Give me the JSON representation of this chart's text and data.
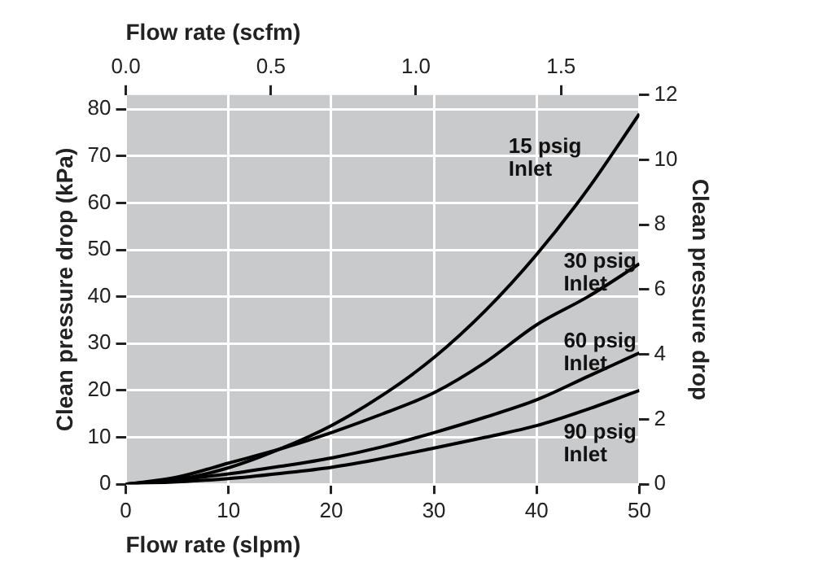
{
  "chart_data": {
    "type": "line",
    "xlabel": "Flow rate (slpm)",
    "x2label": "Flow rate (scfm)",
    "ylabel": "Clean pressure drop (kPa)",
    "y2label": "Clean pressure drop",
    "x": [
      0,
      5,
      10,
      15,
      20,
      25,
      30,
      35,
      40,
      45,
      50
    ],
    "xlim": [
      0,
      50
    ],
    "xticks": [
      0,
      10,
      20,
      30,
      40,
      50
    ],
    "x2lim": [
      0,
      1.77
    ],
    "x2ticks": [
      {
        "value": 0,
        "label": "0.0"
      },
      {
        "value": 0.5,
        "label": "0.5"
      },
      {
        "value": 1,
        "label": "1.0"
      },
      {
        "value": 1.5,
        "label": "1.5"
      }
    ],
    "ylim": [
      0,
      83
    ],
    "yticks": [
      0,
      10,
      20,
      30,
      40,
      50,
      60,
      70,
      80
    ],
    "y2lim": [
      0,
      12
    ],
    "y2ticks": [
      0,
      2,
      4,
      6,
      8,
      10,
      12
    ],
    "series": [
      {
        "name": "15 psig Inlet",
        "color": "#000000",
        "values": [
          0,
          1,
          3.5,
          7.5,
          12.5,
          19,
          27,
          37,
          49,
          63,
          79
        ]
      },
      {
        "name": "30 psig Inlet",
        "color": "#000000",
        "values": [
          0,
          1.5,
          4.5,
          7.5,
          11,
          15,
          19.5,
          26,
          34,
          40,
          47
        ]
      },
      {
        "name": "60 psig Inlet",
        "color": "#000000",
        "values": [
          0,
          1,
          2.2,
          3.8,
          5.6,
          8,
          11,
          14.3,
          18,
          23,
          28
        ]
      },
      {
        "name": "90 psig Inlet",
        "color": "#000000",
        "values": [
          0,
          0.5,
          1.2,
          2.3,
          3.6,
          5.5,
          7.7,
          10,
          12.5,
          16,
          20
        ]
      }
    ],
    "grid": true,
    "legend": false,
    "marker": "none",
    "line_style": "solid"
  }
}
